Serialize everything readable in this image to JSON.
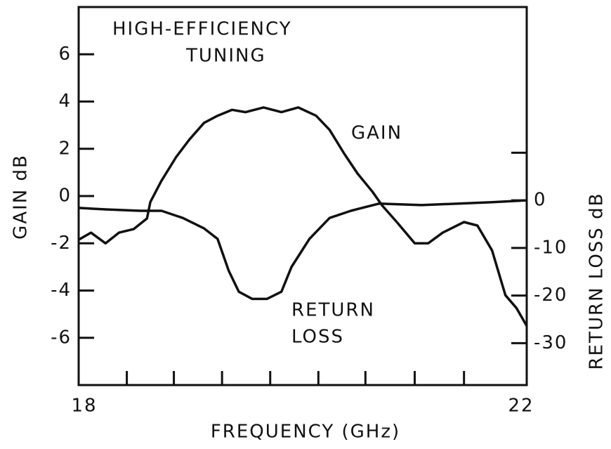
{
  "chart_data": {
    "type": "line",
    "annotations": [
      "HIGH-EFFICIENCY",
      "TUNING",
      "GAIN",
      "RETURN",
      "LOSS"
    ],
    "x_label": "FREQUENCY (GHz)",
    "y_label": "GAIN dB",
    "y2_label": "RETURN LOSS dB",
    "xlim": [
      18,
      22
    ],
    "xticks": [
      18,
      22
    ],
    "xminor_ticks": [
      18.43,
      18.85,
      19.28,
      19.71,
      20.14,
      20.56,
      21.0,
      21.44
    ],
    "ylim": [
      -8,
      8
    ],
    "yticks": [
      -6,
      -4,
      -2,
      0,
      2,
      4,
      6
    ],
    "y2lim": [
      -38.8,
      40.6
    ],
    "y2ticks": [
      -30,
      -20,
      -10,
      0
    ],
    "y2minor_ticks": [
      10
    ],
    "series": [
      {
        "name": "GAIN",
        "color": "#111111",
        "x": [
          18.0,
          18.11,
          18.24,
          18.36,
          18.49,
          18.61,
          18.64,
          18.74,
          18.87,
          18.99,
          19.12,
          19.24,
          19.37,
          19.49,
          19.65,
          19.81,
          19.96,
          20.12,
          20.24,
          20.37,
          20.49,
          20.62,
          20.71,
          20.84,
          21.0,
          21.12,
          21.25,
          21.44,
          21.56,
          21.69,
          21.81,
          21.91,
          22.0
        ],
        "values": [
          -1.85,
          -1.55,
          -2.0,
          -1.55,
          -1.4,
          -0.95,
          -0.25,
          0.65,
          1.65,
          2.4,
          3.1,
          3.4,
          3.65,
          3.55,
          3.75,
          3.55,
          3.75,
          3.4,
          2.8,
          1.8,
          0.95,
          0.2,
          -0.4,
          -1.1,
          -2.0,
          -2.0,
          -1.55,
          -1.1,
          -1.25,
          -2.3,
          -4.2,
          -4.75,
          -5.5
        ]
      },
      {
        "name": "RETURN LOSS",
        "color": "#111111",
        "axis": "y2",
        "x": [
          18.0,
          18.24,
          18.55,
          18.74,
          18.93,
          19.12,
          19.24,
          19.34,
          19.43,
          19.55,
          19.68,
          19.81,
          19.9,
          20.06,
          20.24,
          20.43,
          20.68,
          21.06,
          21.69,
          22.0
        ],
        "values": [
          -1.6,
          -1.9,
          -2.2,
          -2.2,
          -3.7,
          -5.9,
          -8.1,
          -14.8,
          -19.2,
          -20.7,
          -20.7,
          -19.2,
          -14.0,
          -8.1,
          -3.7,
          -2.2,
          -0.7,
          -1.0,
          -0.4,
          0
        ]
      }
    ]
  }
}
